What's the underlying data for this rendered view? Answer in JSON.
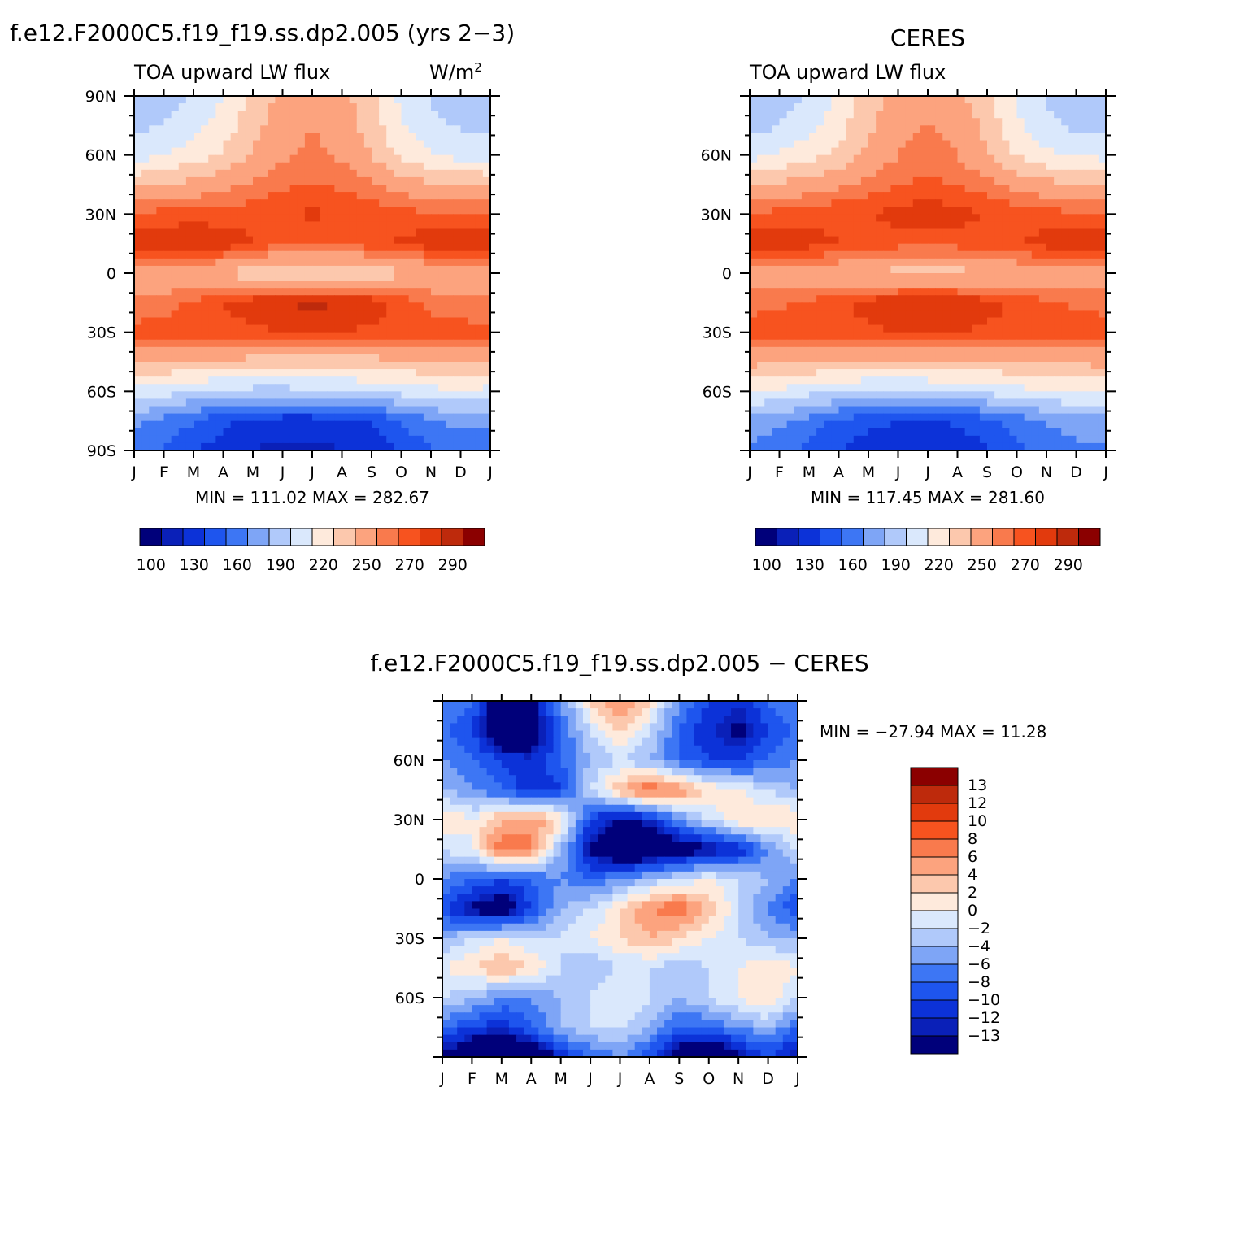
{
  "palettes": {
    "flux": [
      "#00007a",
      "#0a20b8",
      "#0c32d8",
      "#1e55ee",
      "#3d76f4",
      "#7ea5f6",
      "#b0c9fa",
      "#dae8fc",
      "#feeadc",
      "#fcc8ad",
      "#fca37e",
      "#f97a4d",
      "#f7531f",
      "#e23a0d",
      "#be2a0c",
      "#8b0000"
    ],
    "diff": [
      "#00007a",
      "#0a20b8",
      "#0c32d8",
      "#1e55ee",
      "#3d76f4",
      "#7ea5f6",
      "#b0c9fa",
      "#dae8fc",
      "#feeadc",
      "#fcc8ad",
      "#fca37e",
      "#f97a4d",
      "#f7531f",
      "#e23a0d",
      "#be2a0c",
      "#8b0000"
    ]
  },
  "panels": {
    "model": {
      "title": "f.e12.F2000C5.f19_f19.ss.dp2.005 (yrs 2−3)",
      "var_label": "TOA upward LW flux",
      "units_label": "W/m",
      "units_sup": "2",
      "stats": "MIN = 111.02 MAX = 282.67",
      "colorbar_labels": [
        "100",
        "130",
        "160",
        "190",
        "220",
        "250",
        "270",
        "290"
      ]
    },
    "obs": {
      "title": "CERES",
      "var_label": "TOA upward LW flux",
      "stats": "MIN = 117.45 MAX = 281.60",
      "colorbar_labels": [
        "100",
        "130",
        "160",
        "190",
        "220",
        "250",
        "270",
        "290"
      ]
    },
    "diff": {
      "title": "f.e12.F2000C5.f19_f19.ss.dp2.005 − CERES",
      "stats": "MIN = −27.94 MAX =   11.28",
      "colorbar_labels": [
        "13",
        "12",
        "10",
        "8",
        "6",
        "4",
        "2",
        "0",
        "−2",
        "−4",
        "−6",
        "−8",
        "−10",
        "−12",
        "−13"
      ]
    }
  },
  "chart_data": [
    {
      "type": "heatmap",
      "title": "f.e12.F2000C5.f19_f19.ss.dp2.005 (yrs 2−3)",
      "subtitle": "TOA upward LW flux",
      "units": "W/m2",
      "x": [
        "J",
        "F",
        "M",
        "A",
        "M",
        "J",
        "J",
        "A",
        "S",
        "O",
        "N",
        "D",
        "J"
      ],
      "y_ticks": [
        "90N",
        "60N",
        "30N",
        "0",
        "30S",
        "60S",
        "90S"
      ],
      "ylim": [
        -90,
        90
      ],
      "latitudes": [
        90,
        75,
        60,
        45,
        30,
        15,
        0,
        -15,
        -30,
        -45,
        -60,
        -75,
        -90
      ],
      "values": [
        [
          176,
          180,
          190,
          205,
          225,
          240,
          246,
          240,
          222,
          200,
          188,
          180,
          176
        ],
        [
          186,
          192,
          200,
          212,
          230,
          244,
          250,
          244,
          228,
          206,
          195,
          188,
          186
        ],
        [
          198,
          204,
          212,
          222,
          238,
          248,
          252,
          248,
          234,
          216,
          206,
          200,
          198
        ],
        [
          232,
          236,
          240,
          246,
          252,
          258,
          260,
          258,
          252,
          244,
          238,
          234,
          232
        ],
        [
          262,
          264,
          264,
          264,
          266,
          270,
          272,
          270,
          266,
          264,
          262,
          262,
          262
        ],
        [
          276,
          278,
          282,
          278,
          270,
          262,
          260,
          262,
          266,
          272,
          276,
          276,
          276
        ],
        [
          240,
          238,
          236,
          232,
          226,
          222,
          220,
          222,
          226,
          232,
          236,
          238,
          240
        ],
        [
          252,
          256,
          262,
          270,
          276,
          280,
          282,
          280,
          276,
          266,
          258,
          254,
          252
        ],
        [
          264,
          264,
          264,
          266,
          268,
          270,
          272,
          270,
          268,
          266,
          264,
          264,
          264
        ],
        [
          238,
          236,
          234,
          232,
          230,
          228,
          228,
          228,
          230,
          232,
          234,
          236,
          238
        ],
        [
          200,
          196,
          190,
          186,
          184,
          184,
          186,
          188,
          192,
          196,
          200,
          202,
          200
        ],
        [
          164,
          156,
          146,
          134,
          126,
          122,
          122,
          124,
          132,
          146,
          158,
          164,
          164
        ],
        [
          150,
          144,
          132,
          122,
          114,
          112,
          112,
          114,
          120,
          132,
          144,
          150,
          150
        ]
      ],
      "zlim": [
        111.02,
        282.67
      ],
      "colorbar_ticks": [
        100,
        130,
        160,
        190,
        220,
        250,
        270,
        290
      ],
      "stats": {
        "min": 111.02,
        "max": 282.67
      }
    },
    {
      "type": "heatmap",
      "title": "CERES",
      "subtitle": "TOA upward LW flux",
      "x": [
        "J",
        "F",
        "M",
        "A",
        "M",
        "J",
        "J",
        "A",
        "S",
        "O",
        "N",
        "D",
        "J"
      ],
      "y_ticks": [
        "60N",
        "30N",
        "0",
        "30S",
        "60S"
      ],
      "ylim": [
        -90,
        90
      ],
      "latitudes": [
        90,
        75,
        60,
        45,
        30,
        15,
        0,
        -15,
        -30,
        -45,
        -60,
        -75,
        -90
      ],
      "values": [
        [
          174,
          180,
          192,
          208,
          228,
          242,
          246,
          240,
          224,
          202,
          188,
          178,
          174
        ],
        [
          184,
          190,
          200,
          214,
          232,
          246,
          250,
          246,
          230,
          208,
          194,
          186,
          184
        ],
        [
          200,
          206,
          214,
          224,
          238,
          250,
          254,
          250,
          236,
          218,
          208,
          202,
          200
        ],
        [
          234,
          238,
          242,
          248,
          254,
          260,
          262,
          260,
          254,
          246,
          240,
          236,
          234
        ],
        [
          262,
          264,
          266,
          268,
          270,
          274,
          276,
          274,
          270,
          266,
          264,
          262,
          262
        ],
        [
          276,
          276,
          274,
          270,
          266,
          264,
          264,
          264,
          266,
          270,
          274,
          276,
          276
        ],
        [
          242,
          242,
          240,
          238,
          234,
          230,
          230,
          230,
          234,
          238,
          240,
          242,
          242
        ],
        [
          256,
          258,
          262,
          268,
          274,
          278,
          280,
          278,
          274,
          268,
          262,
          258,
          256
        ],
        [
          266,
          266,
          266,
          266,
          268,
          270,
          270,
          270,
          268,
          266,
          266,
          266,
          266
        ],
        [
          240,
          238,
          236,
          234,
          232,
          230,
          230,
          230,
          232,
          234,
          236,
          238,
          240
        ],
        [
          206,
          202,
          196,
          190,
          188,
          188,
          190,
          192,
          196,
          200,
          204,
          206,
          206
        ],
        [
          170,
          164,
          154,
          142,
          134,
          130,
          130,
          132,
          140,
          152,
          162,
          168,
          170
        ],
        [
          156,
          150,
          140,
          130,
          122,
          118,
          118,
          120,
          128,
          140,
          150,
          156,
          156
        ]
      ],
      "zlim": [
        117.45,
        281.6
      ],
      "colorbar_ticks": [
        100,
        130,
        160,
        190,
        220,
        250,
        270,
        290
      ],
      "stats": {
        "min": 117.45,
        "max": 281.6
      }
    },
    {
      "type": "heatmap",
      "title": "f.e12.F2000C5.f19_f19.ss.dp2.005 − CERES",
      "x": [
        "J",
        "F",
        "M",
        "A",
        "M",
        "J",
        "J",
        "A",
        "S",
        "O",
        "N",
        "D",
        "J"
      ],
      "y_ticks": [
        "60N",
        "30N",
        "0",
        "30S",
        "60S"
      ],
      "ylim": [
        -90,
        90
      ],
      "latitudes": [
        90,
        75,
        60,
        45,
        30,
        15,
        0,
        -15,
        -30,
        -45,
        -60,
        -75,
        -90
      ],
      "values": [
        [
          -6,
          -8,
          -16,
          -14,
          -6,
          2,
          6,
          2,
          -6,
          -10,
          -12,
          -8,
          -6
        ],
        [
          -8,
          -10,
          -18,
          -16,
          -8,
          -2,
          2,
          -2,
          -8,
          -12,
          -14,
          -10,
          -8
        ],
        [
          -6,
          -8,
          -10,
          -12,
          -8,
          -4,
          -2,
          -4,
          -8,
          -10,
          -10,
          -8,
          -6
        ],
        [
          -4,
          -6,
          -8,
          -12,
          -10,
          -2,
          4,
          8,
          6,
          2,
          0,
          -2,
          -4
        ],
        [
          2,
          0,
          4,
          6,
          2,
          -10,
          -14,
          -12,
          -6,
          -2,
          2,
          2,
          2
        ],
        [
          -2,
          0,
          8,
          6,
          -4,
          -14,
          -18,
          -18,
          -16,
          -14,
          -12,
          -6,
          -2
        ],
        [
          -6,
          -8,
          -10,
          -8,
          -6,
          -8,
          -6,
          -4,
          -2,
          0,
          -2,
          -4,
          -6
        ],
        [
          -10,
          -14,
          -16,
          -10,
          -4,
          -2,
          2,
          6,
          8,
          4,
          -2,
          -6,
          -10
        ],
        [
          -4,
          -2,
          0,
          -2,
          -2,
          0,
          2,
          4,
          2,
          0,
          -2,
          -4,
          -4
        ],
        [
          0,
          2,
          4,
          2,
          -2,
          -4,
          -2,
          -2,
          -4,
          -2,
          0,
          2,
          0
        ],
        [
          -2,
          -4,
          -6,
          -6,
          -4,
          -2,
          0,
          -2,
          -4,
          -2,
          0,
          2,
          -2
        ],
        [
          -8,
          -10,
          -12,
          -8,
          -4,
          -2,
          -2,
          -4,
          -8,
          -8,
          -6,
          -4,
          -8
        ],
        [
          -14,
          -18,
          -20,
          -18,
          -12,
          -8,
          -6,
          -10,
          -16,
          -18,
          -14,
          -10,
          -14
        ]
      ],
      "zlim": [
        -27.94,
        11.28
      ],
      "colorbar_ticks": [
        13,
        12,
        10,
        8,
        6,
        4,
        2,
        0,
        -2,
        -4,
        -6,
        -8,
        -10,
        -12,
        -13
      ],
      "stats": {
        "min": -27.94,
        "max": 11.28
      }
    }
  ],
  "month_labels": [
    "J",
    "F",
    "M",
    "A",
    "M",
    "J",
    "J",
    "A",
    "S",
    "O",
    "N",
    "D",
    "J"
  ],
  "lat_labels_full": [
    "90N",
    "60N",
    "30N",
    "0",
    "30S",
    "60S",
    "90S"
  ],
  "lat_labels_inner": [
    "60N",
    "30N",
    "0",
    "30S",
    "60S"
  ]
}
